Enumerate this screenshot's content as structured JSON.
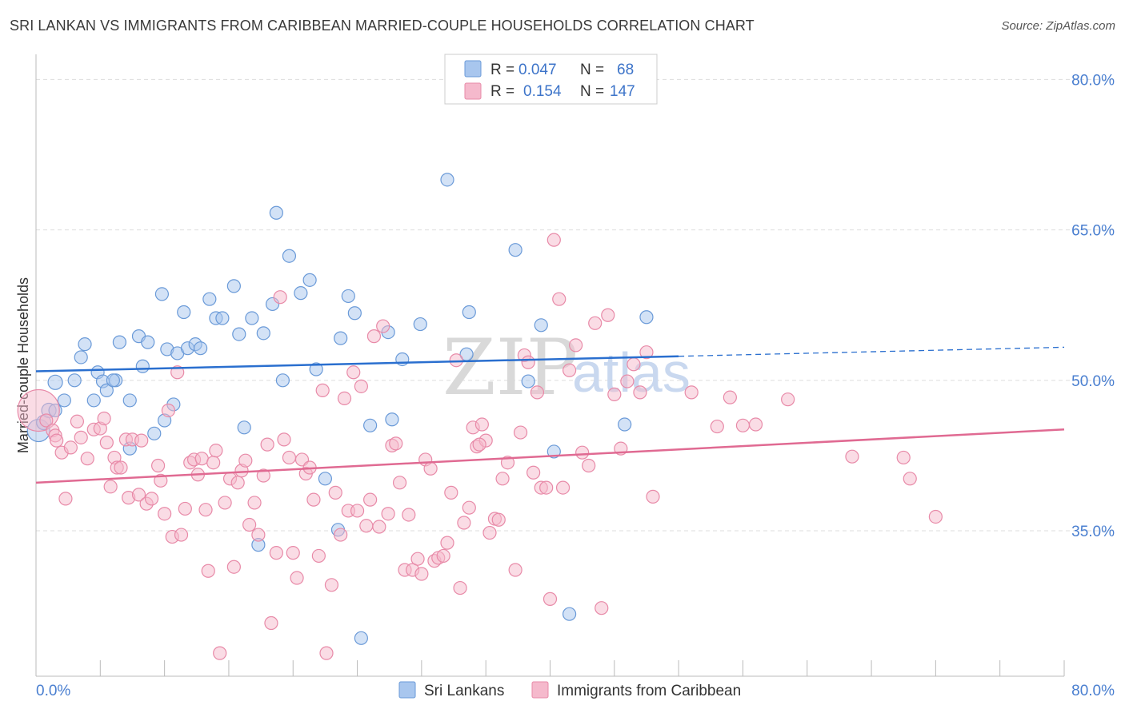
{
  "title": "SRI LANKAN VS IMMIGRANTS FROM CARIBBEAN MARRIED-COUPLE HOUSEHOLDS CORRELATION CHART",
  "source": "Source: ZipAtlas.com",
  "watermark": {
    "zip": "ZIP",
    "atlas": "atlas"
  },
  "colors": {
    "blue_fill": "#a8c6ee",
    "blue_stroke": "#6a9ad8",
    "blue_line": "#2a6fcf",
    "pink_fill": "#f5b9cc",
    "pink_stroke": "#e88aa8",
    "pink_line": "#e06a92",
    "grid": "#dddddd",
    "tick_text": "#4a7fd0"
  },
  "legend": {
    "series1": {
      "r_label": "R =",
      "r_value": "0.047",
      "n_label": "N =",
      "n_value": "68"
    },
    "series2": {
      "r_label": "R =",
      "r_value": "0.154",
      "n_label": "N =",
      "n_value": "147"
    }
  },
  "chart_data": {
    "type": "scatter",
    "ylabel": "Married-couple Households",
    "x_tick_labels": {
      "left": "0.0%",
      "right": "80.0%"
    },
    "y_tick_labels": [
      "80.0%",
      "65.0%",
      "50.0%",
      "35.0%"
    ],
    "xlim": [
      0,
      80
    ],
    "ylim": [
      20.5,
      82.5
    ],
    "y_ticks": [
      80,
      65,
      50,
      35
    ],
    "grid": true,
    "legend_position": "bottom",
    "series": [
      {
        "name": "Sri Lankans",
        "color": "#a8c6ee",
        "trend": {
          "x0": 0,
          "y0": 50.9,
          "x1": 50,
          "y1": 52.4,
          "dashed_to_x": 80,
          "dashed_to_y": 53.3
        },
        "points": [
          [
            0.2,
            45.0,
            14
          ],
          [
            0.6,
            45.8,
            9
          ],
          [
            1,
            47,
            9
          ],
          [
            1.5,
            47,
            8
          ],
          [
            1.5,
            49.8,
            9
          ],
          [
            2.2,
            48,
            8
          ],
          [
            3,
            50,
            8
          ],
          [
            3.5,
            52.3,
            8
          ],
          [
            3.8,
            53.6,
            8
          ],
          [
            4.5,
            48,
            8
          ],
          [
            4.8,
            50.8,
            8
          ],
          [
            5.2,
            49.9,
            8
          ],
          [
            5.5,
            49,
            8
          ],
          [
            6.2,
            50,
            8
          ],
          [
            6.5,
            53.8,
            8
          ],
          [
            6,
            50,
            8
          ],
          [
            7.3,
            48,
            8
          ],
          [
            7.3,
            43.2,
            8
          ],
          [
            8,
            54.4,
            8
          ],
          [
            8.3,
            51.4,
            8
          ],
          [
            8.7,
            53.8,
            8
          ],
          [
            9.2,
            44.7,
            8
          ],
          [
            9.8,
            58.6,
            8
          ],
          [
            10,
            46,
            8
          ],
          [
            10.2,
            53.1,
            8
          ],
          [
            10.7,
            47.6,
            8
          ],
          [
            11,
            52.7,
            8
          ],
          [
            11.5,
            56.8,
            8
          ],
          [
            11.8,
            53.2,
            8
          ],
          [
            12.4,
            53.6,
            8
          ],
          [
            12.8,
            53.2,
            8
          ],
          [
            13.5,
            58.1,
            8
          ],
          [
            14,
            56.2,
            8
          ],
          [
            14.5,
            56.2,
            8
          ],
          [
            15.4,
            59.4,
            8
          ],
          [
            15.8,
            54.6,
            8
          ],
          [
            16.2,
            45.3,
            8
          ],
          [
            16.8,
            56.2,
            8
          ],
          [
            17.3,
            33.6,
            8
          ],
          [
            17.7,
            54.7,
            8
          ],
          [
            18.4,
            57.6,
            8
          ],
          [
            18.7,
            66.7,
            8
          ],
          [
            19.7,
            62.4,
            8
          ],
          [
            19.2,
            50,
            8
          ],
          [
            20.6,
            58.7,
            8
          ],
          [
            21.3,
            60,
            8
          ],
          [
            21.8,
            51.1,
            8
          ],
          [
            22.5,
            40.2,
            8
          ],
          [
            23.7,
            54.2,
            8
          ],
          [
            23.5,
            35.1,
            8
          ],
          [
            24.3,
            58.4,
            8
          ],
          [
            24.8,
            56.7,
            8
          ],
          [
            25.3,
            24.3,
            8
          ],
          [
            26,
            45.5,
            8
          ],
          [
            27.4,
            54.8,
            8
          ],
          [
            27.7,
            46.1,
            8
          ],
          [
            28.5,
            52.1,
            8
          ],
          [
            29.9,
            55.6,
            8
          ],
          [
            32,
            70,
            8
          ],
          [
            33.5,
            52.6,
            8
          ],
          [
            33.7,
            56.8,
            8
          ],
          [
            37.3,
            63,
            8
          ],
          [
            38.3,
            49.9,
            8
          ],
          [
            39.3,
            55.5,
            8
          ],
          [
            40.3,
            42.9,
            8
          ],
          [
            41.5,
            26.7,
            8
          ],
          [
            45.8,
            45.6,
            8
          ],
          [
            47.5,
            56.3,
            8
          ]
        ]
      },
      {
        "name": "Immigrants from Caribbean",
        "color": "#f5b9cc",
        "trend": {
          "x0": 0,
          "y0": 39.8,
          "x1": 80,
          "y1": 45.1
        },
        "points": [
          [
            0.2,
            47,
            26
          ],
          [
            0.8,
            46,
            8
          ],
          [
            1.3,
            45,
            8
          ],
          [
            1.5,
            44.5,
            8
          ],
          [
            1.6,
            44,
            8
          ],
          [
            2,
            42.8,
            8
          ],
          [
            2.3,
            38.2,
            8
          ],
          [
            2.7,
            43.3,
            8
          ],
          [
            3.2,
            45.9,
            8
          ],
          [
            3.5,
            44.3,
            8
          ],
          [
            4,
            42.2,
            8
          ],
          [
            4.5,
            45.1,
            8
          ],
          [
            5,
            45.2,
            8
          ],
          [
            5.3,
            46.2,
            8
          ],
          [
            5.5,
            43.8,
            8
          ],
          [
            5.8,
            39.4,
            8
          ],
          [
            6.1,
            42.3,
            8
          ],
          [
            6.3,
            41.3,
            8
          ],
          [
            6.6,
            41.3,
            8
          ],
          [
            7,
            44.1,
            8
          ],
          [
            7.2,
            38.3,
            8
          ],
          [
            7.5,
            44.1,
            8
          ],
          [
            8,
            38.6,
            8
          ],
          [
            8.2,
            44,
            8
          ],
          [
            8.6,
            37.7,
            8
          ],
          [
            9,
            38.2,
            8
          ],
          [
            9.5,
            41.5,
            8
          ],
          [
            9.7,
            40,
            8
          ],
          [
            10,
            36.7,
            8
          ],
          [
            10.3,
            47,
            8
          ],
          [
            10.6,
            34.4,
            8
          ],
          [
            11,
            50.8,
            8
          ],
          [
            11.3,
            34.6,
            8
          ],
          [
            11.6,
            37.2,
            8
          ],
          [
            12,
            41.8,
            8
          ],
          [
            12.3,
            42.1,
            8
          ],
          [
            12.6,
            40.6,
            8
          ],
          [
            12.9,
            42.2,
            8
          ],
          [
            13.2,
            37.1,
            8
          ],
          [
            13.4,
            31,
            8
          ],
          [
            13.8,
            41.8,
            8
          ],
          [
            14,
            43,
            8
          ],
          [
            14.3,
            22.8,
            8
          ],
          [
            14.7,
            37.8,
            8
          ],
          [
            15.1,
            40.2,
            8
          ],
          [
            15.4,
            31.4,
            8
          ],
          [
            15.7,
            39.8,
            8
          ],
          [
            16,
            41,
            8
          ],
          [
            16.3,
            42,
            8
          ],
          [
            16.6,
            35.6,
            8
          ],
          [
            17,
            37.8,
            8
          ],
          [
            17.3,
            34.6,
            8
          ],
          [
            17.7,
            40.5,
            8
          ],
          [
            18,
            43.6,
            8
          ],
          [
            18.3,
            25.8,
            8
          ],
          [
            18.7,
            32.8,
            8
          ],
          [
            19,
            58.3,
            8
          ],
          [
            19.3,
            44.1,
            8
          ],
          [
            19.7,
            42.3,
            8
          ],
          [
            20,
            32.8,
            8
          ],
          [
            20.3,
            30.3,
            8
          ],
          [
            20.7,
            42.1,
            8
          ],
          [
            21,
            40.7,
            8
          ],
          [
            21.3,
            41.3,
            8
          ],
          [
            21.6,
            38.1,
            8
          ],
          [
            22,
            32.5,
            8
          ],
          [
            22.3,
            49,
            8
          ],
          [
            22.6,
            22.8,
            8
          ],
          [
            23,
            29.6,
            8
          ],
          [
            23.3,
            38.8,
            8
          ],
          [
            23.7,
            34.6,
            8
          ],
          [
            24,
            48.2,
            8
          ],
          [
            24.3,
            37,
            8
          ],
          [
            24.7,
            50.8,
            8
          ],
          [
            25,
            37,
            8
          ],
          [
            25.3,
            49.4,
            8
          ],
          [
            25.7,
            35.5,
            8
          ],
          [
            26,
            38.1,
            8
          ],
          [
            26.3,
            54.4,
            8
          ],
          [
            26.7,
            35.4,
            8
          ],
          [
            27,
            55.4,
            8
          ],
          [
            27.4,
            36.7,
            8
          ],
          [
            27.7,
            43.5,
            8
          ],
          [
            28,
            43.7,
            8
          ],
          [
            28.3,
            39.8,
            8
          ],
          [
            28.7,
            31.1,
            8
          ],
          [
            29,
            36.6,
            8
          ],
          [
            29.3,
            31.1,
            8
          ],
          [
            29.7,
            32.2,
            8
          ],
          [
            30,
            30.7,
            8
          ],
          [
            30.3,
            42.1,
            8
          ],
          [
            30.7,
            41.2,
            8
          ],
          [
            31,
            32,
            8
          ],
          [
            31.3,
            32.3,
            8
          ],
          [
            31.7,
            32.5,
            8
          ],
          [
            32,
            33.8,
            8
          ],
          [
            32.3,
            38.8,
            8
          ],
          [
            32.7,
            52,
            8
          ],
          [
            33,
            29.3,
            8
          ],
          [
            33.3,
            35.8,
            8
          ],
          [
            33.7,
            37.3,
            8
          ],
          [
            34,
            45.3,
            8
          ],
          [
            34.3,
            43.4,
            8
          ],
          [
            34.7,
            45.6,
            8
          ],
          [
            35,
            44,
            8
          ],
          [
            35.3,
            34.8,
            8
          ],
          [
            35.7,
            36.2,
            8
          ],
          [
            36,
            36.1,
            8
          ],
          [
            36.3,
            40.2,
            8
          ],
          [
            36.7,
            41.8,
            8
          ],
          [
            37.3,
            31.1,
            8
          ],
          [
            37.7,
            44.8,
            8
          ],
          [
            38,
            52.5,
            8
          ],
          [
            38.3,
            51.8,
            8
          ],
          [
            38.7,
            40.8,
            8
          ],
          [
            39,
            48.8,
            8
          ],
          [
            39.3,
            39.3,
            8
          ],
          [
            39.7,
            39.3,
            8
          ],
          [
            40,
            28.2,
            8
          ],
          [
            40.3,
            64,
            8
          ],
          [
            40.7,
            58.1,
            8
          ],
          [
            41,
            39.3,
            8
          ],
          [
            41.5,
            51,
            8
          ],
          [
            42,
            53.5,
            8
          ],
          [
            42.5,
            42.8,
            8
          ],
          [
            43,
            41.5,
            8
          ],
          [
            43.5,
            55.7,
            8
          ],
          [
            44,
            27.3,
            8
          ],
          [
            44.5,
            56.5,
            8
          ],
          [
            45,
            48.6,
            8
          ],
          [
            45.5,
            43.2,
            8
          ],
          [
            46,
            49.9,
            8
          ],
          [
            46.5,
            51.6,
            8
          ],
          [
            47,
            48.8,
            8
          ],
          [
            47.5,
            52.8,
            8
          ],
          [
            48,
            38.4,
            8
          ],
          [
            51,
            48.8,
            8
          ],
          [
            53,
            45.4,
            8
          ],
          [
            54,
            48.3,
            8
          ],
          [
            55,
            45.5,
            8
          ],
          [
            56,
            45.6,
            8
          ],
          [
            58.5,
            48.1,
            8
          ],
          [
            63.5,
            42.4,
            8
          ],
          [
            67.5,
            42.3,
            8
          ],
          [
            68,
            40.2,
            8
          ],
          [
            70,
            36.4,
            8
          ],
          [
            34.5,
            43.6,
            8
          ]
        ]
      }
    ]
  }
}
